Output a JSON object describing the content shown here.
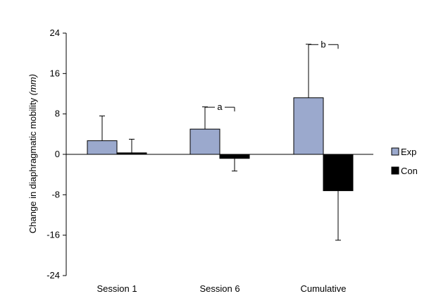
{
  "chart_data": {
    "type": "bar",
    "categories": [
      "Session 1",
      "Session 6",
      "Cumulative"
    ],
    "series": [
      {
        "name": "Exp",
        "values": [
          2.7,
          5.0,
          11.2
        ],
        "errors": [
          4.9,
          4.4,
          10.6
        ],
        "color": "#9ba9cd"
      },
      {
        "name": "Con",
        "values": [
          0.3,
          -0.8,
          -7.2
        ],
        "errors": [
          2.7,
          2.5,
          9.8
        ],
        "color": "#000000"
      }
    ],
    "ylabel_main": "Change in diaphragmatic mobility ",
    "ylabel_unit": "(mm)",
    "ylim": [
      -24,
      24
    ],
    "yticks": [
      -24,
      -16,
      -8,
      0,
      8,
      16,
      24
    ],
    "legend_position": "right",
    "annotations": [
      {
        "category": "Session 6",
        "text": "a"
      },
      {
        "category": "Cumulative",
        "text": "b"
      }
    ],
    "grid": false
  }
}
